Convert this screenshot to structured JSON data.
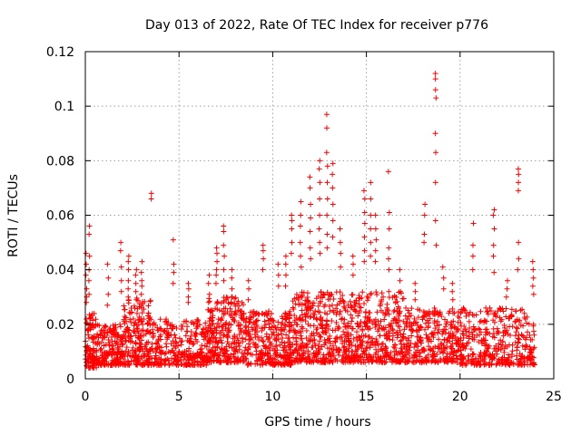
{
  "chart_data": {
    "type": "scatter",
    "title": "Day 013 of 2022, Rate Of TEC Index for receiver p776",
    "xlabel": "GPS time / hours",
    "ylabel": "ROTI / TECUs",
    "xlim": [
      0,
      25
    ],
    "ylim": [
      0,
      0.12
    ],
    "x_ticks": [
      0,
      5,
      10,
      15,
      20,
      25
    ],
    "x_tick_labels": [
      "0",
      "5",
      "10",
      "15",
      "20",
      "25"
    ],
    "y_ticks": [
      0,
      0.02,
      0.04,
      0.06,
      0.08,
      0.1,
      0.12
    ],
    "y_tick_labels": [
      "0",
      "0.02",
      "0.04",
      "0.06",
      "0.08",
      "0.1",
      "0.12"
    ],
    "grid": true,
    "marker": "plus",
    "color": "#ff0000",
    "series": [
      {
        "name": "ROTI",
        "bands": [
          {
            "x_start": 0.0,
            "x_end": 0.6,
            "min": 0.004,
            "max": 0.024,
            "count": 110
          },
          {
            "x_start": 0.6,
            "x_end": 2.0,
            "min": 0.005,
            "max": 0.02,
            "count": 180
          },
          {
            "x_start": 2.0,
            "x_end": 3.5,
            "min": 0.005,
            "max": 0.03,
            "count": 220
          },
          {
            "x_start": 3.5,
            "x_end": 6.5,
            "min": 0.005,
            "max": 0.022,
            "count": 300
          },
          {
            "x_start": 6.5,
            "x_end": 8.5,
            "min": 0.006,
            "max": 0.03,
            "count": 280
          },
          {
            "x_start": 8.5,
            "x_end": 11.0,
            "min": 0.005,
            "max": 0.025,
            "count": 300
          },
          {
            "x_start": 11.0,
            "x_end": 14.0,
            "min": 0.006,
            "max": 0.032,
            "count": 380
          },
          {
            "x_start": 14.0,
            "x_end": 17.0,
            "min": 0.006,
            "max": 0.032,
            "count": 380
          },
          {
            "x_start": 17.0,
            "x_end": 20.0,
            "min": 0.006,
            "max": 0.026,
            "count": 320
          },
          {
            "x_start": 20.0,
            "x_end": 24.0,
            "min": 0.005,
            "max": 0.026,
            "count": 380
          }
        ],
        "spikes": [
          {
            "x": 0.05,
            "values": [
              0.046,
              0.042,
              0.038,
              0.033,
              0.03,
              0.028
            ]
          },
          {
            "x": 0.2,
            "values": [
              0.056,
              0.053,
              0.045,
              0.04,
              0.036,
              0.031
            ]
          },
          {
            "x": 1.2,
            "values": [
              0.042,
              0.037,
              0.031,
              0.027
            ]
          },
          {
            "x": 1.9,
            "values": [
              0.05,
              0.047,
              0.041,
              0.036,
              0.032
            ]
          },
          {
            "x": 2.3,
            "values": [
              0.045,
              0.043,
              0.04,
              0.036,
              0.033,
              0.03
            ]
          },
          {
            "x": 2.7,
            "values": [
              0.04,
              0.038,
              0.035,
              0.032,
              0.029
            ]
          },
          {
            "x": 3.0,
            "values": [
              0.043,
              0.039,
              0.036,
              0.034,
              0.031
            ]
          },
          {
            "x": 3.5,
            "values": [
              0.068,
              0.066
            ]
          },
          {
            "x": 4.7,
            "values": [
              0.051,
              0.042,
              0.039,
              0.035
            ]
          },
          {
            "x": 5.5,
            "values": [
              0.035,
              0.033,
              0.03,
              0.028
            ]
          },
          {
            "x": 6.6,
            "values": [
              0.038,
              0.035,
              0.031,
              0.028
            ]
          },
          {
            "x": 7.0,
            "values": [
              0.048,
              0.046,
              0.043,
              0.04,
              0.038,
              0.035
            ]
          },
          {
            "x": 7.4,
            "values": [
              0.056,
              0.054,
              0.049,
              0.045,
              0.04,
              0.036
            ]
          },
          {
            "x": 7.8,
            "values": [
              0.04,
              0.037,
              0.033,
              0.03
            ]
          },
          {
            "x": 8.7,
            "values": [
              0.036,
              0.033,
              0.029
            ]
          },
          {
            "x": 9.5,
            "values": [
              0.049,
              0.047,
              0.044,
              0.04
            ]
          },
          {
            "x": 10.3,
            "values": [
              0.042,
              0.038,
              0.034
            ]
          },
          {
            "x": 10.7,
            "values": [
              0.045,
              0.042,
              0.038,
              0.034
            ]
          },
          {
            "x": 11.0,
            "values": [
              0.06,
              0.058,
              0.055,
              0.05,
              0.046
            ]
          },
          {
            "x": 11.5,
            "values": [
              0.065,
              0.06,
              0.056,
              0.05,
              0.045,
              0.041
            ]
          },
          {
            "x": 12.0,
            "values": [
              0.074,
              0.07,
              0.064,
              0.059,
              0.054,
              0.048,
              0.044
            ]
          },
          {
            "x": 12.5,
            "values": [
              0.08,
              0.077,
              0.072,
              0.066,
              0.06,
              0.055,
              0.05,
              0.046
            ]
          },
          {
            "x": 12.9,
            "values": [
              0.097,
              0.092,
              0.083,
              0.078,
              0.072,
              0.066,
              0.06,
              0.053,
              0.048
            ]
          },
          {
            "x": 13.2,
            "values": [
              0.079,
              0.075,
              0.07,
              0.064,
              0.058,
              0.052
            ]
          },
          {
            "x": 13.6,
            "values": [
              0.055,
              0.05,
              0.046,
              0.041
            ]
          },
          {
            "x": 14.3,
            "values": [
              0.045,
              0.042,
              0.038
            ]
          },
          {
            "x": 14.9,
            "values": [
              0.069,
              0.066,
              0.061,
              0.057,
              0.052,
              0.047,
              0.043
            ]
          },
          {
            "x": 15.2,
            "values": [
              0.072,
              0.066,
              0.06,
              0.055,
              0.05,
              0.045
            ]
          },
          {
            "x": 15.5,
            "values": [
              0.06,
              0.055,
              0.051,
              0.047,
              0.043
            ]
          },
          {
            "x": 16.2,
            "values": [
              0.076,
              0.061,
              0.055,
              0.048,
              0.044,
              0.04
            ]
          },
          {
            "x": 16.8,
            "values": [
              0.04,
              0.036,
              0.032
            ]
          },
          {
            "x": 17.6,
            "values": [
              0.035,
              0.032,
              0.029
            ]
          },
          {
            "x": 18.1,
            "values": [
              0.064,
              0.06,
              0.053,
              0.05
            ]
          },
          {
            "x": 18.7,
            "values": [
              0.112,
              0.11,
              0.106,
              0.103,
              0.09,
              0.083,
              0.072,
              0.058,
              0.049
            ]
          },
          {
            "x": 19.1,
            "values": [
              0.041,
              0.037,
              0.033
            ]
          },
          {
            "x": 19.6,
            "values": [
              0.035,
              0.032,
              0.029
            ]
          },
          {
            "x": 20.7,
            "values": [
              0.057,
              0.049,
              0.045,
              0.04
            ]
          },
          {
            "x": 21.8,
            "values": [
              0.062,
              0.06,
              0.055,
              0.049,
              0.045,
              0.039
            ]
          },
          {
            "x": 22.5,
            "values": [
              0.036,
              0.033,
              0.03
            ]
          },
          {
            "x": 23.1,
            "values": [
              0.077,
              0.075,
              0.072,
              0.069,
              0.05,
              0.044,
              0.04
            ]
          },
          {
            "x": 23.9,
            "values": [
              0.043,
              0.04,
              0.037,
              0.034,
              0.031
            ]
          }
        ]
      }
    ]
  }
}
